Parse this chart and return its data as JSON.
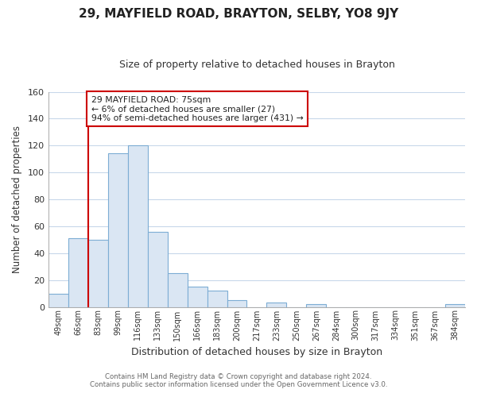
{
  "title": "29, MAYFIELD ROAD, BRAYTON, SELBY, YO8 9JY",
  "subtitle": "Size of property relative to detached houses in Brayton",
  "xlabel": "Distribution of detached houses by size in Brayton",
  "ylabel": "Number of detached properties",
  "bar_labels": [
    "49sqm",
    "66sqm",
    "83sqm",
    "99sqm",
    "116sqm",
    "133sqm",
    "150sqm",
    "166sqm",
    "183sqm",
    "200sqm",
    "217sqm",
    "233sqm",
    "250sqm",
    "267sqm",
    "284sqm",
    "300sqm",
    "317sqm",
    "334sqm",
    "351sqm",
    "367sqm",
    "384sqm"
  ],
  "bar_heights": [
    10,
    51,
    50,
    114,
    120,
    56,
    25,
    15,
    12,
    5,
    0,
    3,
    0,
    2,
    0,
    0,
    0,
    0,
    0,
    0,
    2
  ],
  "bar_color": "#dae6f3",
  "bar_edge_color": "#7dadd4",
  "ylim": [
    0,
    160
  ],
  "yticks": [
    0,
    20,
    40,
    60,
    80,
    100,
    120,
    140,
    160
  ],
  "vline_x_index": 1.5,
  "vline_color": "#cc0000",
  "annotation_title": "29 MAYFIELD ROAD: 75sqm",
  "annotation_line1": "← 6% of detached houses are smaller (27)",
  "annotation_line2": "94% of semi-detached houses are larger (431) →",
  "annotation_box_color": "#ffffff",
  "annotation_box_edge": "#cc0000",
  "footer1": "Contains HM Land Registry data © Crown copyright and database right 2024.",
  "footer2": "Contains public sector information licensed under the Open Government Licence v3.0.",
  "background_color": "#ffffff",
  "grid_color": "#c8d8ea"
}
